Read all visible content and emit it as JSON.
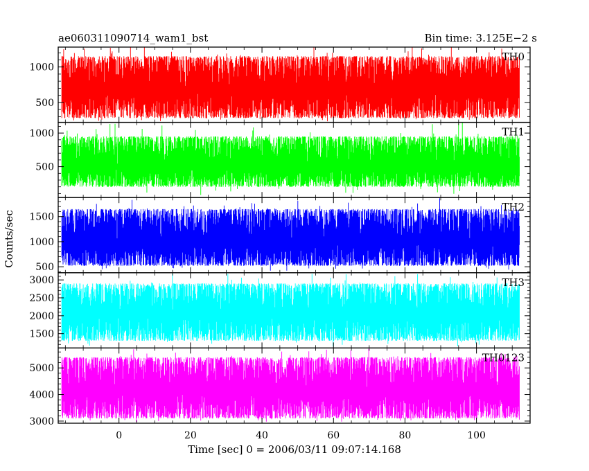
{
  "header": {
    "left_title": "ae060311090714_wam1_bst",
    "right_title": "Bin time: 3.125E−2 s"
  },
  "chart_data": {
    "type": "line",
    "ylabel": "Counts/sec",
    "xlabel": "Time [sec] 0 = 2006/03/11 09:07:14.168",
    "x_range": [
      -17,
      115
    ],
    "x_ticks": [
      0,
      20,
      40,
      60,
      80,
      100
    ],
    "x_tick_labels": [
      "0",
      "20",
      "40",
      "60",
      "80",
      "100"
    ],
    "data_x_range": [
      -16,
      112
    ],
    "panels": [
      {
        "name": "TH0",
        "color": "#ff0000",
        "ylim": [
          220,
          1280
        ],
        "yticks": [
          500,
          1000
        ],
        "ytick_labels": [
          "500",
          "1000"
        ],
        "mean": 680,
        "low": 280,
        "high": 1150,
        "spike_max": 1300
      },
      {
        "name": "TH1",
        "color": "#00ff00",
        "ylim": [
          40,
          1160
        ],
        "yticks": [
          500,
          1000
        ],
        "ytick_labels": [
          "500",
          "1000"
        ],
        "mean": 500,
        "low": 200,
        "high": 950,
        "spike_max": 1160
      },
      {
        "name": "TH2",
        "color": "#0000ff",
        "ylim": [
          380,
          1880
        ],
        "yticks": [
          500,
          1000,
          1500
        ],
        "ytick_labels": [
          "500",
          "1000",
          "1500"
        ],
        "mean": 980,
        "low": 520,
        "high": 1650,
        "spike_max": 1880
      },
      {
        "name": "TH3",
        "color": "#00ffff",
        "ylim": [
          1100,
          3200
        ],
        "yticks": [
          1500,
          2000,
          2500,
          3000
        ],
        "ytick_labels": [
          "1500",
          "2000",
          "2500",
          "3000"
        ],
        "mean": 2050,
        "low": 1300,
        "high": 2900,
        "spike_max": 3200
      },
      {
        "name": "TH0123",
        "color": "#ff00ff",
        "ylim": [
          2920,
          5750
        ],
        "yticks": [
          3000,
          4000,
          5000
        ],
        "ytick_labels": [
          "3000",
          "4000",
          "5000"
        ],
        "mean": 4100,
        "low": 3100,
        "high": 5400,
        "spike_max": 5750
      }
    ]
  }
}
